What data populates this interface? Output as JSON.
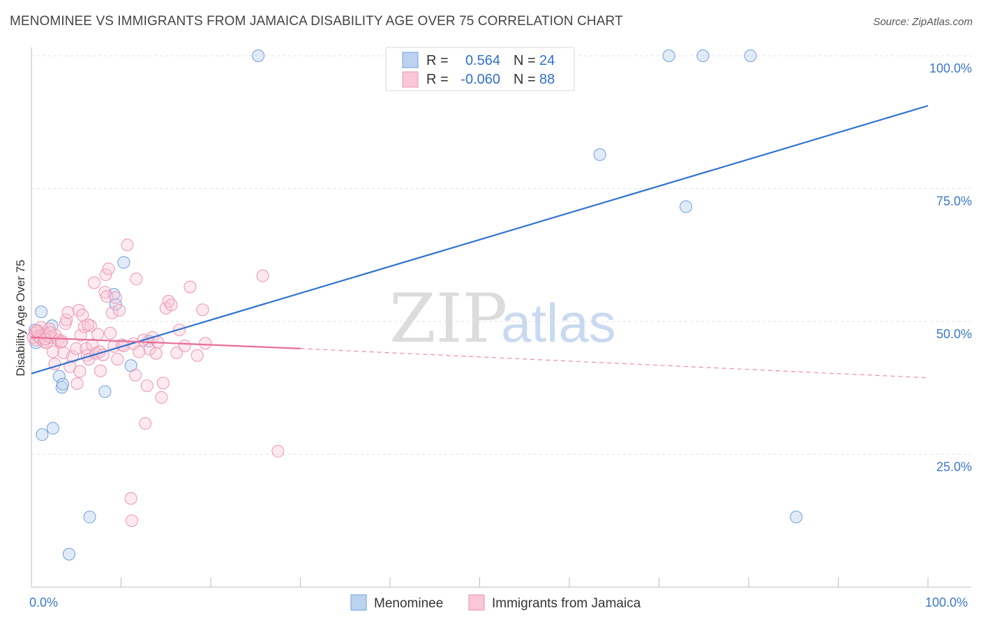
{
  "header": {
    "title": "MENOMINEE VS IMMIGRANTS FROM JAMAICA DISABILITY AGE OVER 75 CORRELATION CHART",
    "source": "Source: ZipAtlas.com"
  },
  "chart_data": {
    "type": "scatter",
    "title": "MENOMINEE VS IMMIGRANTS FROM JAMAICA DISABILITY AGE OVER 75 CORRELATION CHART",
    "xlabel": "",
    "ylabel": "Disability Age Over 75",
    "xlim": [
      0,
      100
    ],
    "ylim": [
      0,
      100
    ],
    "x_tick_labels": [
      "0.0%",
      "100.0%"
    ],
    "y_ticks": [
      25,
      50,
      75,
      100
    ],
    "y_tick_labels": [
      "25.0%",
      "50.0%",
      "75.0%",
      "100.0%"
    ],
    "grid": true,
    "watermark": {
      "zip": "ZIP",
      "atlas": "atlas"
    },
    "legend": {
      "entries": [
        {
          "r_label": "R =",
          "r_value": "0.564",
          "n_label": "N =",
          "n_value": "24"
        },
        {
          "r_label": "R =",
          "r_value": "-0.060",
          "n_label": "N =",
          "n_value": "88"
        }
      ]
    },
    "series": [
      {
        "name": "Menominee",
        "color": "#8db4e2",
        "line_color": "#2f72d0",
        "trend": {
          "x0": 0,
          "y0": 40.2,
          "x1": 100,
          "y1": 90.6,
          "dashed_after": null
        },
        "points": [
          [
            0.4,
            48.4
          ],
          [
            0.5,
            46.0
          ],
          [
            1.1,
            51.8
          ],
          [
            1.2,
            28.7
          ],
          [
            2.3,
            49.2
          ],
          [
            2.4,
            29.9
          ],
          [
            3.1,
            39.7
          ],
          [
            3.4,
            37.6
          ],
          [
            3.5,
            38.2
          ],
          [
            4.2,
            6.2
          ],
          [
            6.5,
            13.2
          ],
          [
            8.2,
            36.8
          ],
          [
            9.2,
            55.1
          ],
          [
            9.4,
            53.2
          ],
          [
            10.3,
            61.1
          ],
          [
            11.1,
            41.7
          ],
          [
            13.1,
            46.3
          ],
          [
            25.3,
            100.0
          ],
          [
            63.4,
            81.4
          ],
          [
            71.1,
            100.0
          ],
          [
            73.0,
            71.6
          ],
          [
            74.9,
            100.0
          ],
          [
            80.2,
            100.0
          ],
          [
            85.3,
            13.2
          ]
        ]
      },
      {
        "name": "Immigrants from Jamaica",
        "color": "#f4a7c0",
        "line_color": "#e86d97",
        "trend": {
          "x0": 0,
          "y0": 47.0,
          "x1": 30,
          "y1": 44.9,
          "dashed_to_x": 100,
          "dashed_to_y": 39.4
        },
        "points": [
          [
            0.2,
            47.0
          ],
          [
            0.4,
            47.8
          ],
          [
            0.5,
            46.5
          ],
          [
            0.7,
            48.3
          ],
          [
            0.8,
            47.2
          ],
          [
            1.0,
            46.9
          ],
          [
            1.1,
            48.9
          ],
          [
            1.3,
            47.5
          ],
          [
            1.4,
            46.2
          ],
          [
            1.6,
            47.7
          ],
          [
            1.7,
            46.0
          ],
          [
            1.9,
            47.2
          ],
          [
            2.0,
            48.6
          ],
          [
            2.2,
            47.0
          ],
          [
            2.4,
            44.3
          ],
          [
            2.6,
            42.0
          ],
          [
            2.7,
            47.4
          ],
          [
            3.0,
            46.5
          ],
          [
            3.3,
            46.1
          ],
          [
            3.6,
            44.1
          ],
          [
            3.8,
            49.6
          ],
          [
            3.9,
            50.3
          ],
          [
            4.1,
            51.7
          ],
          [
            4.3,
            41.5
          ],
          [
            4.6,
            43.4
          ],
          [
            5.0,
            44.9
          ],
          [
            5.1,
            38.3
          ],
          [
            5.3,
            52.1
          ],
          [
            5.4,
            40.6
          ],
          [
            5.5,
            47.4
          ],
          [
            5.7,
            51.2
          ],
          [
            5.9,
            49.0
          ],
          [
            6.1,
            44.9
          ],
          [
            6.2,
            43.6
          ],
          [
            6.4,
            42.9
          ],
          [
            6.6,
            49.2
          ],
          [
            6.8,
            45.6
          ],
          [
            7.0,
            57.3
          ],
          [
            7.2,
            44.0
          ],
          [
            7.4,
            47.6
          ],
          [
            7.6,
            44.3
          ],
          [
            7.7,
            40.7
          ],
          [
            8.0,
            43.7
          ],
          [
            8.2,
            55.5
          ],
          [
            8.3,
            58.8
          ],
          [
            8.4,
            54.7
          ],
          [
            8.6,
            59.9
          ],
          [
            8.8,
            47.8
          ],
          [
            9.0,
            51.6
          ],
          [
            9.2,
            45.3
          ],
          [
            9.4,
            54.5
          ],
          [
            9.6,
            42.9
          ],
          [
            9.8,
            52.1
          ],
          [
            10.1,
            45.6
          ],
          [
            10.3,
            45.4
          ],
          [
            10.7,
            64.4
          ],
          [
            11.1,
            16.7
          ],
          [
            11.2,
            12.5
          ],
          [
            11.4,
            45.8
          ],
          [
            11.6,
            39.9
          ],
          [
            11.7,
            58.0
          ],
          [
            12.0,
            44.3
          ],
          [
            12.5,
            46.5
          ],
          [
            12.7,
            30.8
          ],
          [
            12.9,
            37.9
          ],
          [
            13.2,
            44.8
          ],
          [
            13.5,
            47.0
          ],
          [
            13.9,
            44.0
          ],
          [
            14.1,
            46.1
          ],
          [
            14.5,
            35.7
          ],
          [
            14.7,
            38.4
          ],
          [
            15.0,
            52.5
          ],
          [
            15.3,
            53.8
          ],
          [
            15.6,
            53.1
          ],
          [
            16.2,
            44.1
          ],
          [
            16.5,
            48.4
          ],
          [
            17.1,
            45.4
          ],
          [
            17.7,
            56.5
          ],
          [
            18.5,
            43.6
          ],
          [
            19.1,
            52.2
          ],
          [
            19.4,
            45.9
          ],
          [
            25.8,
            58.6
          ],
          [
            27.5,
            25.6
          ],
          [
            3.4,
            46.3
          ],
          [
            0.6,
            48.2
          ],
          [
            1.5,
            46.7
          ],
          [
            2.1,
            47.9
          ],
          [
            6.3,
            49.4
          ]
        ]
      }
    ]
  }
}
